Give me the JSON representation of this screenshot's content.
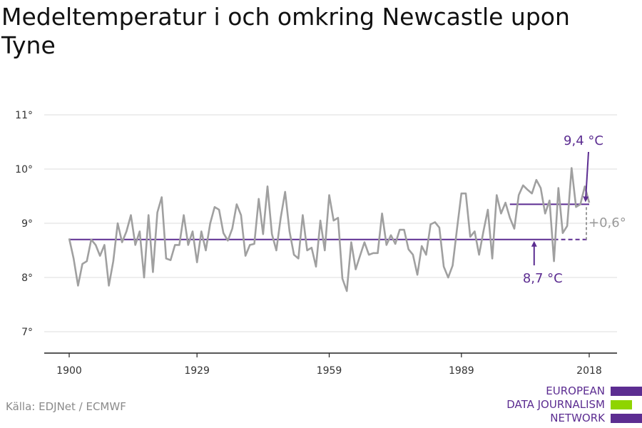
{
  "title": "Medeltemperatur i och omkring Newcastle upon Tyne",
  "source": "Källa: EDJNet / ECMWF",
  "logo": {
    "lines": [
      "EUROPEAN",
      "DATA JOURNALISM",
      "NETWORK"
    ],
    "colors": [
      "#5c2d91",
      "#8fd400",
      "#5c2d91"
    ]
  },
  "colors": {
    "line": "#a0a0a0",
    "accent": "#5c2d91",
    "grid": "#dddddd",
    "axis": "#222222",
    "delta": "#999999"
  },
  "chart_data": {
    "type": "line",
    "title": "Medeltemperatur i och omkring Newcastle upon Tyne",
    "xlim": [
      1900,
      2018
    ],
    "ylim": [
      6.5,
      11.3
    ],
    "x_ticks": [
      1900,
      1929,
      1959,
      1989,
      2018
    ],
    "x_tick_labels": [
      "1900",
      "1929",
      "1959",
      "1989",
      "2018"
    ],
    "y_ticks": [
      7,
      8,
      9,
      10,
      11
    ],
    "y_tick_labels": [
      "7°",
      "8°",
      "9°",
      "10°",
      "11°"
    ],
    "grid": true,
    "series": [
      {
        "x_start": 1900,
        "x_end": 2018,
        "values": [
          8.72,
          8.35,
          7.85,
          8.25,
          8.3,
          8.7,
          8.6,
          8.4,
          8.6,
          7.85,
          8.3,
          9.0,
          8.65,
          8.85,
          9.15,
          8.6,
          8.85,
          8.0,
          9.15,
          8.1,
          9.2,
          9.48,
          8.35,
          8.32,
          8.6,
          8.6,
          9.15,
          8.6,
          8.85,
          8.28,
          8.85,
          8.5,
          9.0,
          9.3,
          9.25,
          8.82,
          8.68,
          8.9,
          9.35,
          9.15,
          8.4,
          8.6,
          8.62,
          9.45,
          8.8,
          9.68,
          8.8,
          8.5,
          9.1,
          9.58,
          8.85,
          8.42,
          8.35,
          9.15,
          8.5,
          8.55,
          8.2,
          9.05,
          8.5,
          9.52,
          9.05,
          9.1,
          7.98,
          7.75,
          8.65,
          8.15,
          8.4,
          8.65,
          8.42,
          8.45,
          8.45,
          9.18,
          8.6,
          8.78,
          8.62,
          8.88,
          8.88,
          8.52,
          8.42,
          8.05,
          8.58,
          8.42,
          8.98,
          9.02,
          8.92,
          8.2,
          8.0,
          8.22,
          8.9,
          9.55,
          9.55,
          8.75,
          8.85,
          8.42,
          8.85,
          9.25,
          8.35,
          9.52,
          9.18,
          9.38,
          9.1,
          8.9,
          9.52,
          9.7,
          9.62,
          9.55,
          9.8,
          9.65,
          9.18,
          9.42,
          8.3,
          9.65,
          8.82,
          8.95,
          10.02,
          9.3,
          9.35,
          9.68,
          9.38
        ]
      }
    ],
    "baseline": {
      "value": 8.7,
      "from": 1900,
      "to": 2018,
      "solid_until": 2010,
      "label": "8,7 °C"
    },
    "recent": {
      "value": 9.35,
      "from": 2000,
      "to": 2018,
      "label": "9,4 °C"
    },
    "difference_label": "+0,6°"
  }
}
